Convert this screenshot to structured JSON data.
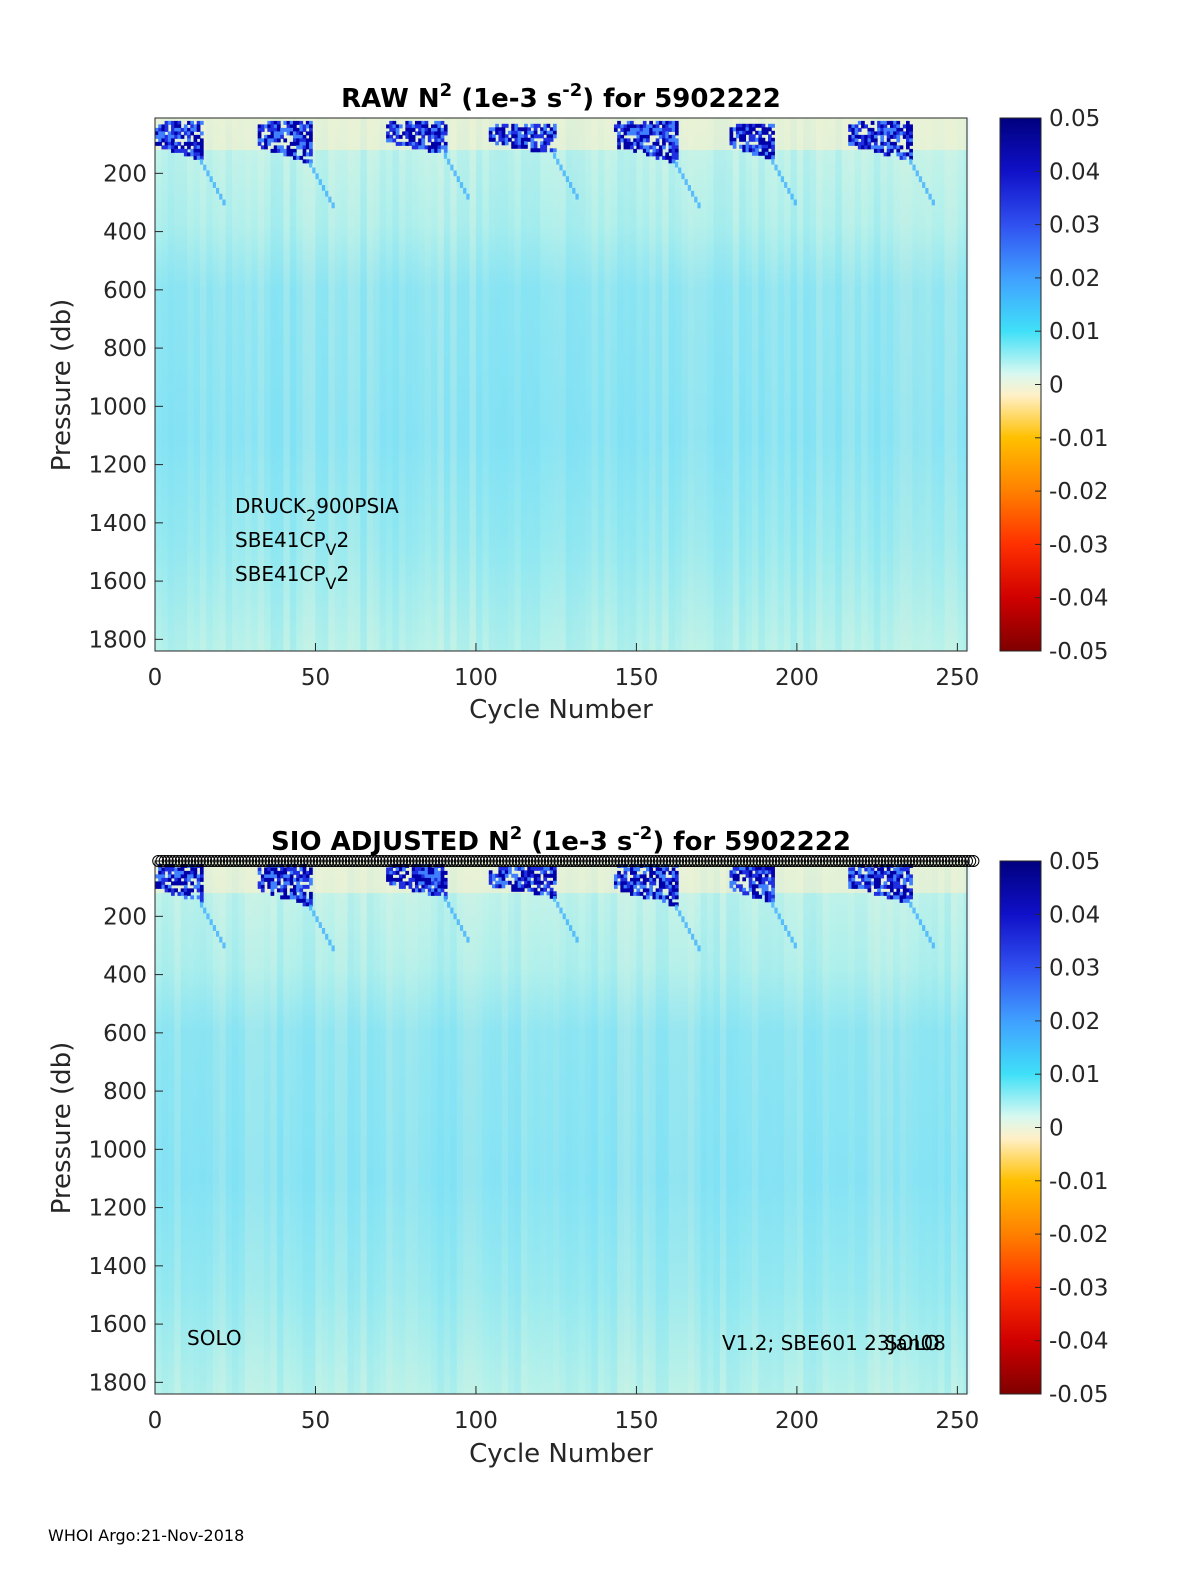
{
  "colors": {
    "colormap": [
      "#7f0000",
      "#d40000",
      "#ff4000",
      "#ff9000",
      "#ffc000",
      "#fff0c8",
      "#c8f4ec",
      "#40e8ff",
      "#40a0ff",
      "#2020e0",
      "#00007f"
    ],
    "background_field": "#8fe6f0",
    "axis": "#262626"
  },
  "chart_data": [
    {
      "type": "heatmap",
      "title_main": "RAW N",
      "title_sup": "2",
      "title_mid": " (1e-3 s",
      "title_sup2": "-2",
      "title_end": ") for 5902222",
      "xlabel": "Cycle Number",
      "ylabel": "Pressure (db)",
      "xlim": [
        0,
        253
      ],
      "ylim": [
        1840,
        10
      ],
      "x_ticks": [
        "0",
        "50",
        "100",
        "150",
        "200",
        "250"
      ],
      "x_tick_values": [
        0,
        50,
        100,
        150,
        200,
        250
      ],
      "y_ticks": [
        "200",
        "400",
        "600",
        "800",
        "1000",
        "1200",
        "1400",
        "1600",
        "1800"
      ],
      "y_tick_values": [
        200,
        400,
        600,
        800,
        1000,
        1200,
        1400,
        1600,
        1800
      ],
      "colorbar": {
        "range": [
          -0.05,
          0.05
        ],
        "ticks": [
          "0.05",
          "0.04",
          "0.03",
          "0.02",
          "0.01",
          "0",
          "-0.01",
          "-0.02",
          "-0.03",
          "-0.04",
          "-0.05"
        ],
        "tick_values": [
          0.05,
          0.04,
          0.03,
          0.02,
          0.01,
          0,
          -0.01,
          -0.02,
          -0.03,
          -0.04,
          -0.05
        ]
      },
      "strong_stratification_events": [
        {
          "cycle_start": 0,
          "cycle_end": 14,
          "pressure_top": 20,
          "pressure_bottom": 150
        },
        {
          "cycle_start": 32,
          "cycle_end": 48,
          "pressure_top": 20,
          "pressure_bottom": 160
        },
        {
          "cycle_start": 72,
          "cycle_end": 90,
          "pressure_top": 20,
          "pressure_bottom": 130
        },
        {
          "cycle_start": 104,
          "cycle_end": 124,
          "pressure_top": 30,
          "pressure_bottom": 130
        },
        {
          "cycle_start": 143,
          "cycle_end": 162,
          "pressure_top": 20,
          "pressure_bottom": 160
        },
        {
          "cycle_start": 179,
          "cycle_end": 192,
          "pressure_top": 30,
          "pressure_bottom": 150
        },
        {
          "cycle_start": 216,
          "cycle_end": 235,
          "pressure_top": 20,
          "pressure_bottom": 150
        }
      ],
      "annotations": [
        {
          "base": "DRUCK",
          "sub": "2",
          "rest": "900PSIA"
        },
        {
          "base": "SBE41CP",
          "sub": "V",
          "rest": "2"
        },
        {
          "base": "SBE41CP",
          "sub": "V",
          "rest": "2"
        }
      ]
    },
    {
      "type": "heatmap",
      "title_main": "SIO  ADJUSTED N",
      "title_sup": "2",
      "title_mid": " (1e-3 s",
      "title_sup2": "-2",
      "title_end": ") for 5902222",
      "xlabel": "Cycle Number",
      "ylabel": "Pressure (db)",
      "xlim": [
        0,
        253
      ],
      "ylim": [
        1840,
        10
      ],
      "x_ticks": [
        "0",
        "50",
        "100",
        "150",
        "200",
        "250"
      ],
      "x_tick_values": [
        0,
        50,
        100,
        150,
        200,
        250
      ],
      "y_ticks": [
        "200",
        "400",
        "600",
        "800",
        "1000",
        "1200",
        "1400",
        "1600",
        "1800"
      ],
      "y_tick_values": [
        200,
        400,
        600,
        800,
        1000,
        1200,
        1400,
        1600,
        1800
      ],
      "colorbar": {
        "range": [
          -0.05,
          0.05
        ],
        "ticks": [
          "0.05",
          "0.04",
          "0.03",
          "0.02",
          "0.01",
          "0",
          "-0.01",
          "-0.02",
          "-0.03",
          "-0.04",
          "-0.05"
        ],
        "tick_values": [
          0.05,
          0.04,
          0.03,
          0.02,
          0.01,
          0,
          -0.01,
          -0.02,
          -0.03,
          -0.04,
          -0.05
        ]
      },
      "qc_markers": {
        "cycle_start": 1,
        "cycle_end": 255,
        "pressure": 0
      },
      "annotations_left": "SOLO",
      "annotations_right": "V1.2; SBE601 23Jan08",
      "annotation_overlap": "SOLO"
    }
  ],
  "footer": "WHOI Argo:21-Nov-2018"
}
